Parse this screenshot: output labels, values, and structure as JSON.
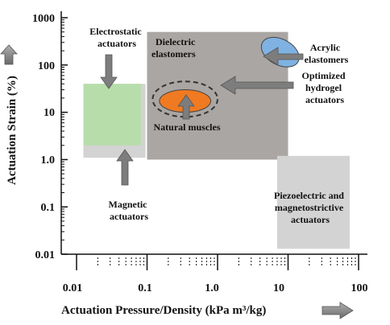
{
  "chart_data": {
    "type": "scatter",
    "title": "",
    "xlabel": "Actuation Pressure/Density (kPa m³/kg)",
    "ylabel": "Actuation Strain (%)",
    "xscale": "log",
    "yscale": "log",
    "xlim": [
      0.01,
      100
    ],
    "ylim": [
      0.01,
      1000
    ],
    "grid": false,
    "x_ticks": [
      "0.01",
      "0.1",
      "1.0",
      "10",
      "100"
    ],
    "y_ticks": [
      "0.01",
      "0.1",
      "1.0",
      "10",
      "100",
      "1000"
    ],
    "regions": [
      {
        "name": "Dielectric elastomers",
        "shape": "rect",
        "x_range": [
          0.1,
          10
        ],
        "y_range": [
          1,
          500
        ],
        "color": "#aaa6a3"
      },
      {
        "name": "Magnetic actuators",
        "shape": "rect",
        "x_range": [
          0.0125,
          0.095
        ],
        "y_range": [
          1.1,
          40
        ],
        "color": "#d3d3d3"
      },
      {
        "name": "Electrostatic actuators",
        "shape": "rect",
        "x_range": [
          0.0125,
          0.082
        ],
        "y_range": [
          2,
          40
        ],
        "color": "#b7deaa"
      },
      {
        "name": "Piezoelectric and magnetostrictive actuators",
        "shape": "rect",
        "x_range": [
          7,
          75
        ],
        "y_range": [
          0.013,
          1.2
        ],
        "color": "#d3d3d3"
      },
      {
        "name": "Acrylic elastomers",
        "shape": "ellipse",
        "x_range": [
          4,
          15
        ],
        "y_range": [
          100,
          350
        ],
        "color": "#7fb2e2"
      },
      {
        "name": "Natural muscles",
        "shape": "ellipse",
        "x_range": [
          0.15,
          0.8
        ],
        "y_range": [
          10,
          30
        ],
        "color": "#f07a22"
      },
      {
        "name": "Optimized hydrogel actuators",
        "shape": "dashed-ellipse",
        "x_range": [
          0.12,
          1.0
        ],
        "y_range": [
          8,
          45
        ],
        "color": "#333333"
      }
    ],
    "labels": {
      "electrostatic": [
        "Electrostatic",
        "actuators"
      ],
      "dielectric": [
        "Dielectric",
        "elastomers"
      ],
      "acrylic": [
        "Acrylic",
        "elastomers"
      ],
      "hydrogel": [
        "Optimized",
        "hydrogel",
        "actuators"
      ],
      "natural": [
        "Natural muscles"
      ],
      "magnetic": [
        "Magnetic",
        "actuators"
      ],
      "piezo": [
        "Piezoelectric and",
        "magnetostrictive",
        "actuators"
      ]
    }
  }
}
